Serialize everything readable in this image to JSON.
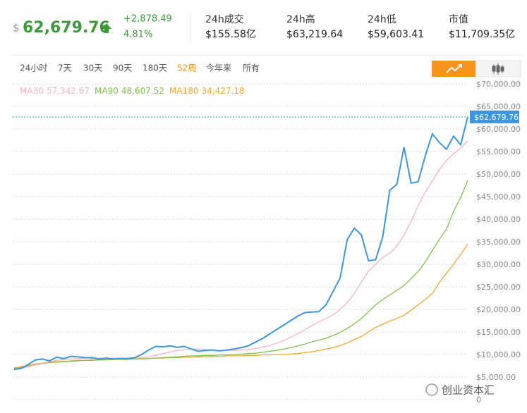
{
  "header": {
    "currency": "$",
    "price": "62,679.76",
    "change": "+2,878.49",
    "change_pct": "4.81%",
    "stats": [
      {
        "label": "24h成交",
        "value": "$155.58亿"
      },
      {
        "label": "24h高",
        "value": "$63,219.64"
      },
      {
        "label": "24h低",
        "value": "$59,603.41"
      },
      {
        "label": "市值",
        "value": "$11,709.35亿"
      }
    ]
  },
  "tabs": [
    "24小时",
    "7天",
    "30天",
    "90天",
    "180天",
    "52周",
    "今年来",
    "所有"
  ],
  "active_tab": 5,
  "watermark": "创业资本汇",
  "chart_data": {
    "type": "line",
    "grid": true,
    "ylim": [
      0,
      70000
    ],
    "yticks": [
      0,
      {
        "value": 5000,
        "label": "$5,000.00"
      },
      {
        "value": 10000,
        "label": "$10,000.00"
      },
      {
        "value": 15000,
        "label": "$15,000.00"
      },
      {
        "value": 20000,
        "label": "$20,000.00"
      },
      {
        "value": 25000,
        "label": "$25,000.00"
      },
      {
        "value": 30000,
        "label": "$30,000.00"
      },
      {
        "value": 35000,
        "label": "$35,000.00"
      },
      {
        "value": 40000,
        "label": "$40,000.00"
      },
      {
        "value": 45000,
        "label": "$45,000.00"
      },
      {
        "value": 50000,
        "label": "$50,000.00"
      },
      {
        "value": 55000,
        "label": "$55,000.00"
      },
      {
        "value": 60000,
        "label": "$60,000.00"
      },
      {
        "value": 65000,
        "label": "$65,000.00"
      },
      {
        "value": 70000,
        "label": "$70,000.00"
      }
    ],
    "series": [
      {
        "color": "#3d95dc",
        "current_label": "$62,679.76",
        "values": [
          6700,
          6900,
          7800,
          8800,
          9000,
          8600,
          9400,
          9100,
          9600,
          9500,
          9300,
          9300,
          9000,
          9200,
          9000,
          9100,
          9100,
          9300,
          10000,
          11000,
          11800,
          11700,
          11900,
          11600,
          11800,
          11200,
          10700,
          10900,
          11000,
          10800,
          11000,
          11200,
          11500,
          11900,
          12700,
          13500,
          14500,
          15500,
          16500,
          17500,
          18500,
          19300,
          19400,
          19500,
          21000,
          24000,
          27000,
          35500,
          38000,
          36500,
          30800,
          31000,
          36000,
          46400,
          47700,
          56000,
          48000,
          48300,
          54000,
          58900,
          57000,
          55500,
          58400,
          56500,
          62679.76
        ]
      },
      {
        "name": "MA30",
        "value_label": "57,342.67",
        "color": "#f6b3c6",
        "values": [
          6800,
          6900,
          7300,
          7700,
          8100,
          8400,
          8700,
          8900,
          9000,
          9100,
          9200,
          9200,
          9200,
          9200,
          9200,
          9200,
          9200,
          9200,
          9300,
          9500,
          9800,
          10200,
          10600,
          10900,
          11100,
          11200,
          11200,
          11100,
          11000,
          10900,
          10900,
          10900,
          11000,
          11100,
          11300,
          11600,
          12000,
          12500,
          13100,
          13800,
          14600,
          15500,
          16400,
          17200,
          18000,
          18800,
          20000,
          21500,
          23500,
          26000,
          28500,
          30000,
          31500,
          32500,
          34000,
          36500,
          39500,
          43000,
          46000,
          48500,
          51000,
          53000,
          54500,
          55800,
          57342.67
        ]
      },
      {
        "name": "MA90",
        "value_label": "48,607.52",
        "color": "#82c04e",
        "values": [
          6900,
          7100,
          7400,
          7700,
          8000,
          8200,
          8300,
          8400,
          8500,
          8600,
          8700,
          8700,
          8800,
          8800,
          8900,
          8900,
          8900,
          9000,
          9000,
          9100,
          9200,
          9300,
          9400,
          9500,
          9600,
          9700,
          9700,
          9800,
          9800,
          9900,
          9900,
          10000,
          10100,
          10200,
          10300,
          10500,
          10700,
          10900,
          11200,
          11500,
          11900,
          12300,
          12800,
          13200,
          13600,
          14200,
          14900,
          15800,
          16800,
          18000,
          19500,
          21000,
          22200,
          23200,
          24200,
          25300,
          26800,
          28400,
          30500,
          33100,
          35500,
          37800,
          41700,
          44800,
          48607.52
        ]
      },
      {
        "name": "MA180",
        "value_label": "34,427.18",
        "color": "#f3a531",
        "values": [
          7000,
          7300,
          7600,
          7900,
          8100,
          8300,
          8400,
          8500,
          8600,
          8700,
          8700,
          8800,
          8800,
          8900,
          8900,
          9000,
          9000,
          9000,
          9100,
          9100,
          9200,
          9200,
          9300,
          9300,
          9400,
          9400,
          9500,
          9500,
          9600,
          9600,
          9700,
          9700,
          9700,
          9800,
          9800,
          9900,
          9900,
          10000,
          10000,
          10100,
          10200,
          10400,
          10600,
          10900,
          11200,
          11500,
          12000,
          12600,
          13300,
          14000,
          15000,
          16000,
          16700,
          17400,
          18000,
          18700,
          19800,
          21000,
          22200,
          23500,
          26000,
          28000,
          30000,
          32200,
          34427.18
        ]
      }
    ]
  }
}
